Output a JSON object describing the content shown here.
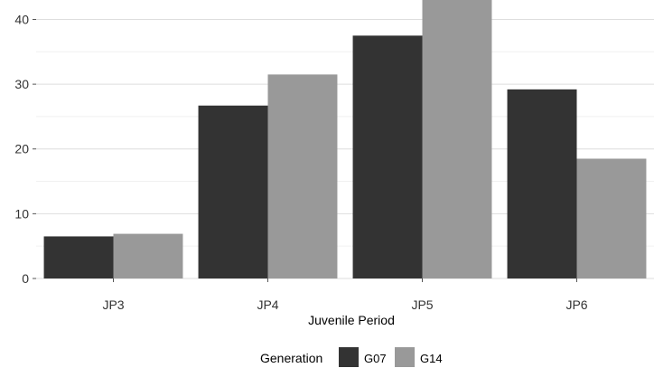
{
  "chart_data": {
    "type": "bar",
    "xlabel": "Juvenile Period",
    "ylabel": "",
    "categories": [
      "JP3",
      "JP4",
      "JP5",
      "JP6"
    ],
    "series": [
      {
        "name": "G07",
        "values": [
          6.5,
          26.7,
          37.5,
          29.2
        ],
        "color": "#333333"
      },
      {
        "name": "G14",
        "values": [
          6.9,
          31.5,
          43.5,
          18.5
        ],
        "color": "#999999"
      }
    ],
    "ylim": [
      0,
      43
    ],
    "yticks": [
      0,
      10,
      20,
      30,
      40
    ],
    "grid": true,
    "legend": {
      "title": "Generation",
      "position": "bottom"
    }
  }
}
